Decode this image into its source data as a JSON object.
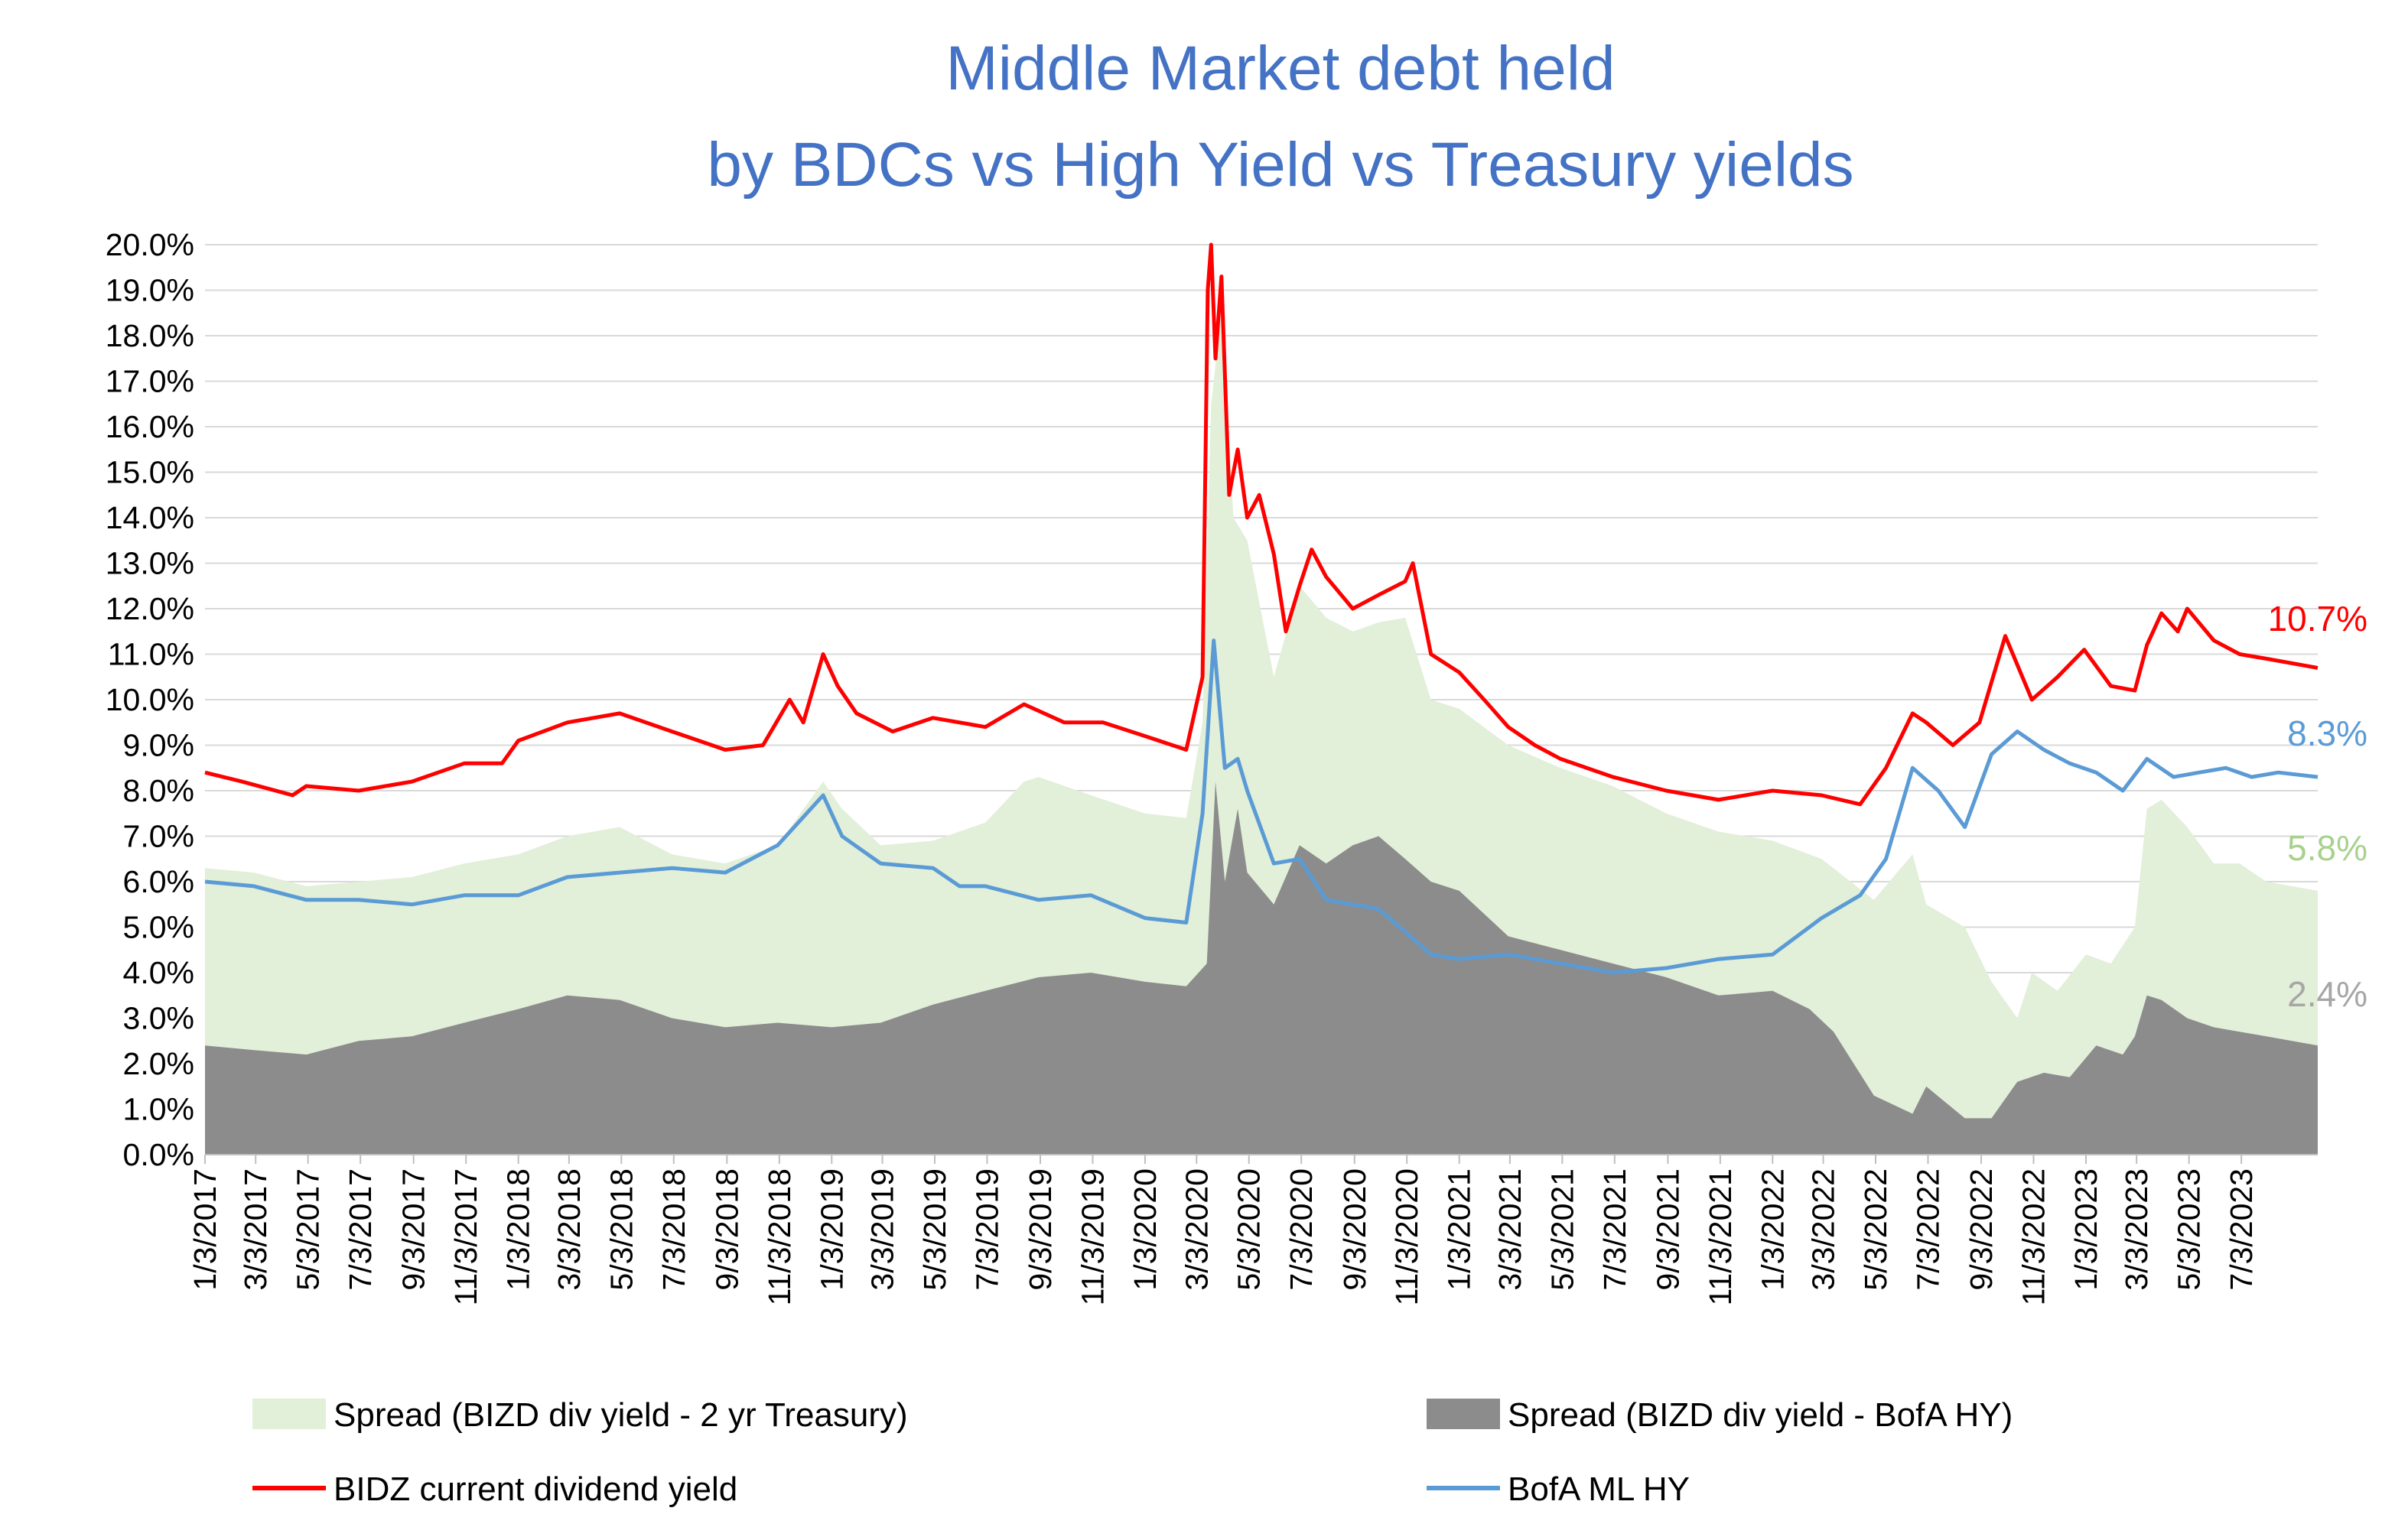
{
  "chart_data": {
    "type": "area",
    "title": "Middle Market debt held by BDCs vs High Yield vs Treasury yields",
    "title_lines": [
      "Middle Market debt held",
      "by BDCs vs High Yield vs Treasury yields"
    ],
    "xlabel": "",
    "ylabel": "",
    "ylim": [
      0,
      20
    ],
    "y_ticks": [
      "0.0%",
      "1.0%",
      "2.0%",
      "3.0%",
      "4.0%",
      "5.0%",
      "6.0%",
      "7.0%",
      "8.0%",
      "9.0%",
      "10.0%",
      "11.0%",
      "12.0%",
      "13.0%",
      "14.0%",
      "15.0%",
      "16.0%",
      "17.0%",
      "18.0%",
      "19.0%",
      "20.0%"
    ],
    "x_range": [
      "2017-01-03",
      "2023-09-30"
    ],
    "x_ticks": [
      "1/3/2017",
      "3/3/2017",
      "5/3/2017",
      "7/3/2017",
      "9/3/2017",
      "11/3/2017",
      "1/3/2018",
      "3/3/2018",
      "5/3/2018",
      "7/3/2018",
      "9/3/2018",
      "11/3/2018",
      "1/3/2019",
      "3/3/2019",
      "5/3/2019",
      "7/3/2019",
      "9/3/2019",
      "11/3/2019",
      "1/3/2020",
      "3/3/2020",
      "5/3/2020",
      "7/3/2020",
      "9/3/2020",
      "11/3/2020",
      "1/3/2021",
      "3/3/2021",
      "5/3/2021",
      "7/3/2021",
      "9/3/2021",
      "11/3/2021",
      "1/3/2022",
      "3/3/2022",
      "5/3/2022",
      "7/3/2022",
      "9/3/2022",
      "11/3/2022",
      "1/3/2023",
      "3/3/2023",
      "5/3/2023",
      "7/3/2023"
    ],
    "grid": true,
    "legend_position": "bottom",
    "series": [
      {
        "name": "Spread (BIZD div yield - 2 yr Treasury)",
        "kind": "area",
        "color": "#E2EFD9",
        "end_label": "5.8%",
        "end_label_color": "#A9D18E",
        "points": [
          [
            "2017-01-03",
            6.3
          ],
          [
            "2017-03-01",
            6.2
          ],
          [
            "2017-05-01",
            5.9
          ],
          [
            "2017-07-01",
            6.0
          ],
          [
            "2017-09-01",
            6.1
          ],
          [
            "2017-11-01",
            6.4
          ],
          [
            "2018-01-03",
            6.6
          ],
          [
            "2018-03-01",
            7.0
          ],
          [
            "2018-05-01",
            7.2
          ],
          [
            "2018-07-01",
            6.6
          ],
          [
            "2018-09-01",
            6.4
          ],
          [
            "2018-11-01",
            6.8
          ],
          [
            "2018-12-24",
            8.2
          ],
          [
            "2019-01-15",
            7.6
          ],
          [
            "2019-03-01",
            6.8
          ],
          [
            "2019-05-01",
            6.9
          ],
          [
            "2019-07-01",
            7.3
          ],
          [
            "2019-08-15",
            8.2
          ],
          [
            "2019-09-01",
            8.3
          ],
          [
            "2019-11-01",
            7.9
          ],
          [
            "2020-01-03",
            7.5
          ],
          [
            "2020-02-20",
            7.4
          ],
          [
            "2020-03-10",
            9.5
          ],
          [
            "2020-03-20",
            16.5
          ],
          [
            "2020-04-01",
            18.5
          ],
          [
            "2020-04-15",
            14.0
          ],
          [
            "2020-05-01",
            13.5
          ],
          [
            "2020-06-01",
            10.5
          ],
          [
            "2020-07-01",
            12.5
          ],
          [
            "2020-08-01",
            11.8
          ],
          [
            "2020-09-01",
            11.5
          ],
          [
            "2020-10-01",
            11.7
          ],
          [
            "2020-11-01",
            11.8
          ],
          [
            "2020-12-01",
            10.0
          ],
          [
            "2021-01-03",
            9.8
          ],
          [
            "2021-03-01",
            9.0
          ],
          [
            "2021-05-01",
            8.5
          ],
          [
            "2021-07-01",
            8.1
          ],
          [
            "2021-09-01",
            7.5
          ],
          [
            "2021-11-01",
            7.1
          ],
          [
            "2022-01-03",
            6.9
          ],
          [
            "2022-03-01",
            6.5
          ],
          [
            "2022-05-01",
            5.6
          ],
          [
            "2022-06-15",
            6.6
          ],
          [
            "2022-07-01",
            5.5
          ],
          [
            "2022-08-15",
            5.0
          ],
          [
            "2022-09-15",
            3.8
          ],
          [
            "2022-10-15",
            3.0
          ],
          [
            "2022-11-01",
            4.0
          ],
          [
            "2022-12-01",
            3.6
          ],
          [
            "2023-01-03",
            4.4
          ],
          [
            "2023-02-01",
            4.2
          ],
          [
            "2023-03-01",
            5.0
          ],
          [
            "2023-03-15",
            7.6
          ],
          [
            "2023-04-01",
            7.8
          ],
          [
            "2023-05-01",
            7.2
          ],
          [
            "2023-06-01",
            6.4
          ],
          [
            "2023-07-01",
            6.4
          ],
          [
            "2023-08-01",
            6.0
          ],
          [
            "2023-09-30",
            5.8
          ]
        ]
      },
      {
        "name": "Spread (BIZD div yield - BofA HY)",
        "kind": "area",
        "color": "#8C8C8C",
        "end_label": "2.4%",
        "end_label_color": "#A6A6A6",
        "points": [
          [
            "2017-01-03",
            2.4
          ],
          [
            "2017-03-01",
            2.3
          ],
          [
            "2017-05-01",
            2.2
          ],
          [
            "2017-07-01",
            2.5
          ],
          [
            "2017-09-01",
            2.6
          ],
          [
            "2017-11-01",
            2.9
          ],
          [
            "2018-01-03",
            3.2
          ],
          [
            "2018-03-01",
            3.5
          ],
          [
            "2018-05-01",
            3.4
          ],
          [
            "2018-07-01",
            3.0
          ],
          [
            "2018-09-01",
            2.8
          ],
          [
            "2018-11-01",
            2.9
          ],
          [
            "2019-01-03",
            2.8
          ],
          [
            "2019-03-01",
            2.9
          ],
          [
            "2019-05-01",
            3.3
          ],
          [
            "2019-07-01",
            3.6
          ],
          [
            "2019-09-01",
            3.9
          ],
          [
            "2019-11-01",
            4.0
          ],
          [
            "2020-01-03",
            3.8
          ],
          [
            "2020-02-20",
            3.7
          ],
          [
            "2020-03-15",
            4.2
          ],
          [
            "2020-03-25",
            8.2
          ],
          [
            "2020-04-05",
            6.0
          ],
          [
            "2020-04-20",
            7.6
          ],
          [
            "2020-05-01",
            6.2
          ],
          [
            "2020-06-01",
            5.5
          ],
          [
            "2020-07-01",
            6.8
          ],
          [
            "2020-08-01",
            6.4
          ],
          [
            "2020-09-01",
            6.8
          ],
          [
            "2020-10-01",
            7.0
          ],
          [
            "2020-11-01",
            6.5
          ],
          [
            "2020-12-01",
            6.0
          ],
          [
            "2021-01-03",
            5.8
          ],
          [
            "2021-03-01",
            4.8
          ],
          [
            "2021-05-01",
            4.5
          ],
          [
            "2021-07-01",
            4.2
          ],
          [
            "2021-09-01",
            3.9
          ],
          [
            "2021-11-01",
            3.5
          ],
          [
            "2022-01-03",
            3.6
          ],
          [
            "2022-02-15",
            3.2
          ],
          [
            "2022-03-15",
            2.7
          ],
          [
            "2022-05-01",
            1.3
          ],
          [
            "2022-06-15",
            0.9
          ],
          [
            "2022-07-01",
            1.5
          ],
          [
            "2022-08-15",
            0.8
          ],
          [
            "2022-09-15",
            0.8
          ],
          [
            "2022-10-15",
            1.6
          ],
          [
            "2022-11-15",
            1.8
          ],
          [
            "2022-12-15",
            1.7
          ],
          [
            "2023-01-15",
            2.4
          ],
          [
            "2023-02-15",
            2.2
          ],
          [
            "2023-03-01",
            2.6
          ],
          [
            "2023-03-15",
            3.5
          ],
          [
            "2023-04-01",
            3.4
          ],
          [
            "2023-05-01",
            3.0
          ],
          [
            "2023-06-01",
            2.8
          ],
          [
            "2023-07-01",
            2.7
          ],
          [
            "2023-08-01",
            2.6
          ],
          [
            "2023-09-30",
            2.4
          ]
        ]
      },
      {
        "name": "BIDZ current dividend yield",
        "kind": "line",
        "color": "#FF0000",
        "end_label": "10.7%",
        "end_label_color": "#FF0000",
        "points": [
          [
            "2017-01-03",
            8.4
          ],
          [
            "2017-02-15",
            8.2
          ],
          [
            "2017-04-15",
            7.9
          ],
          [
            "2017-05-01",
            8.1
          ],
          [
            "2017-07-01",
            8.0
          ],
          [
            "2017-09-01",
            8.2
          ],
          [
            "2017-11-01",
            8.6
          ],
          [
            "2017-12-15",
            8.6
          ],
          [
            "2018-01-03",
            9.1
          ],
          [
            "2018-03-01",
            9.5
          ],
          [
            "2018-05-01",
            9.7
          ],
          [
            "2018-07-01",
            9.3
          ],
          [
            "2018-09-01",
            8.9
          ],
          [
            "2018-10-15",
            9.0
          ],
          [
            "2018-11-15",
            10.0
          ],
          [
            "2018-12-01",
            9.5
          ],
          [
            "2018-12-24",
            11.0
          ],
          [
            "2019-01-10",
            10.3
          ],
          [
            "2019-02-01",
            9.7
          ],
          [
            "2019-03-15",
            9.3
          ],
          [
            "2019-05-01",
            9.6
          ],
          [
            "2019-07-01",
            9.4
          ],
          [
            "2019-08-15",
            9.9
          ],
          [
            "2019-10-01",
            9.5
          ],
          [
            "2019-11-15",
            9.5
          ],
          [
            "2020-01-03",
            9.2
          ],
          [
            "2020-02-20",
            8.9
          ],
          [
            "2020-03-10",
            10.5
          ],
          [
            "2020-03-16",
            19.0
          ],
          [
            "2020-03-20",
            20.0
          ],
          [
            "2020-03-25",
            17.5
          ],
          [
            "2020-04-01",
            19.3
          ],
          [
            "2020-04-10",
            14.5
          ],
          [
            "2020-04-20",
            15.5
          ],
          [
            "2020-05-01",
            14.0
          ],
          [
            "2020-05-15",
            14.5
          ],
          [
            "2020-06-01",
            13.2
          ],
          [
            "2020-06-15",
            11.5
          ],
          [
            "2020-07-01",
            12.5
          ],
          [
            "2020-07-15",
            13.3
          ],
          [
            "2020-08-01",
            12.7
          ],
          [
            "2020-09-01",
            12.0
          ],
          [
            "2020-10-01",
            12.3
          ],
          [
            "2020-11-01",
            12.6
          ],
          [
            "2020-11-10",
            13.0
          ],
          [
            "2020-12-01",
            11.0
          ],
          [
            "2021-01-03",
            10.6
          ],
          [
            "2021-02-01",
            10.0
          ],
          [
            "2021-03-01",
            9.4
          ],
          [
            "2021-04-01",
            9.0
          ],
          [
            "2021-05-01",
            8.7
          ],
          [
            "2021-07-01",
            8.3
          ],
          [
            "2021-09-01",
            8.0
          ],
          [
            "2021-11-01",
            7.8
          ],
          [
            "2022-01-03",
            8.0
          ],
          [
            "2022-03-01",
            7.9
          ],
          [
            "2022-04-15",
            7.7
          ],
          [
            "2022-05-15",
            8.5
          ],
          [
            "2022-06-15",
            9.7
          ],
          [
            "2022-07-01",
            9.5
          ],
          [
            "2022-08-01",
            9.0
          ],
          [
            "2022-09-01",
            9.5
          ],
          [
            "2022-10-01",
            11.4
          ],
          [
            "2022-11-01",
            10.0
          ],
          [
            "2022-12-01",
            10.5
          ],
          [
            "2023-01-01",
            11.1
          ],
          [
            "2023-02-01",
            10.3
          ],
          [
            "2023-03-01",
            10.2
          ],
          [
            "2023-03-15",
            11.2
          ],
          [
            "2023-04-01",
            11.9
          ],
          [
            "2023-04-20",
            11.5
          ],
          [
            "2023-05-01",
            12.0
          ],
          [
            "2023-06-01",
            11.3
          ],
          [
            "2023-07-01",
            11.0
          ],
          [
            "2023-08-01",
            10.9
          ],
          [
            "2023-09-30",
            10.7
          ]
        ]
      },
      {
        "name": "BofA ML HY",
        "kind": "line",
        "color": "#5B9BD5",
        "end_label": "8.3%",
        "end_label_color": "#5B9BD5",
        "points": [
          [
            "2017-01-03",
            6.0
          ],
          [
            "2017-03-01",
            5.9
          ],
          [
            "2017-05-01",
            5.6
          ],
          [
            "2017-07-01",
            5.6
          ],
          [
            "2017-09-01",
            5.5
          ],
          [
            "2017-11-01",
            5.7
          ],
          [
            "2018-01-03",
            5.7
          ],
          [
            "2018-03-01",
            6.1
          ],
          [
            "2018-05-01",
            6.2
          ],
          [
            "2018-07-01",
            6.3
          ],
          [
            "2018-09-01",
            6.2
          ],
          [
            "2018-11-01",
            6.8
          ],
          [
            "2018-12-24",
            7.9
          ],
          [
            "2019-01-15",
            7.0
          ],
          [
            "2019-03-01",
            6.4
          ],
          [
            "2019-05-01",
            6.3
          ],
          [
            "2019-06-01",
            5.9
          ],
          [
            "2019-07-01",
            5.9
          ],
          [
            "2019-09-01",
            5.6
          ],
          [
            "2019-11-01",
            5.7
          ],
          [
            "2020-01-03",
            5.2
          ],
          [
            "2020-02-20",
            5.1
          ],
          [
            "2020-03-10",
            7.5
          ],
          [
            "2020-03-23",
            11.3
          ],
          [
            "2020-04-05",
            8.5
          ],
          [
            "2020-04-20",
            8.7
          ],
          [
            "2020-05-01",
            8.0
          ],
          [
            "2020-06-01",
            6.4
          ],
          [
            "2020-07-01",
            6.5
          ],
          [
            "2020-08-01",
            5.6
          ],
          [
            "2020-09-01",
            5.5
          ],
          [
            "2020-10-01",
            5.4
          ],
          [
            "2020-11-01",
            4.9
          ],
          [
            "2020-12-01",
            4.4
          ],
          [
            "2021-01-03",
            4.3
          ],
          [
            "2021-03-01",
            4.4
          ],
          [
            "2021-05-01",
            4.2
          ],
          [
            "2021-07-01",
            4.0
          ],
          [
            "2021-09-01",
            4.1
          ],
          [
            "2021-11-01",
            4.3
          ],
          [
            "2022-01-03",
            4.4
          ],
          [
            "2022-03-01",
            5.2
          ],
          [
            "2022-04-15",
            5.7
          ],
          [
            "2022-05-15",
            6.5
          ],
          [
            "2022-06-15",
            8.5
          ],
          [
            "2022-07-15",
            8.0
          ],
          [
            "2022-08-15",
            7.2
          ],
          [
            "2022-09-15",
            8.8
          ],
          [
            "2022-10-15",
            9.3
          ],
          [
            "2022-11-15",
            8.9
          ],
          [
            "2022-12-15",
            8.6
          ],
          [
            "2023-01-15",
            8.4
          ],
          [
            "2023-02-15",
            8.0
          ],
          [
            "2023-03-15",
            8.7
          ],
          [
            "2023-04-15",
            8.3
          ],
          [
            "2023-05-15",
            8.4
          ],
          [
            "2023-06-15",
            8.5
          ],
          [
            "2023-07-15",
            8.3
          ],
          [
            "2023-08-15",
            8.4
          ],
          [
            "2023-09-30",
            8.3
          ]
        ]
      }
    ]
  }
}
